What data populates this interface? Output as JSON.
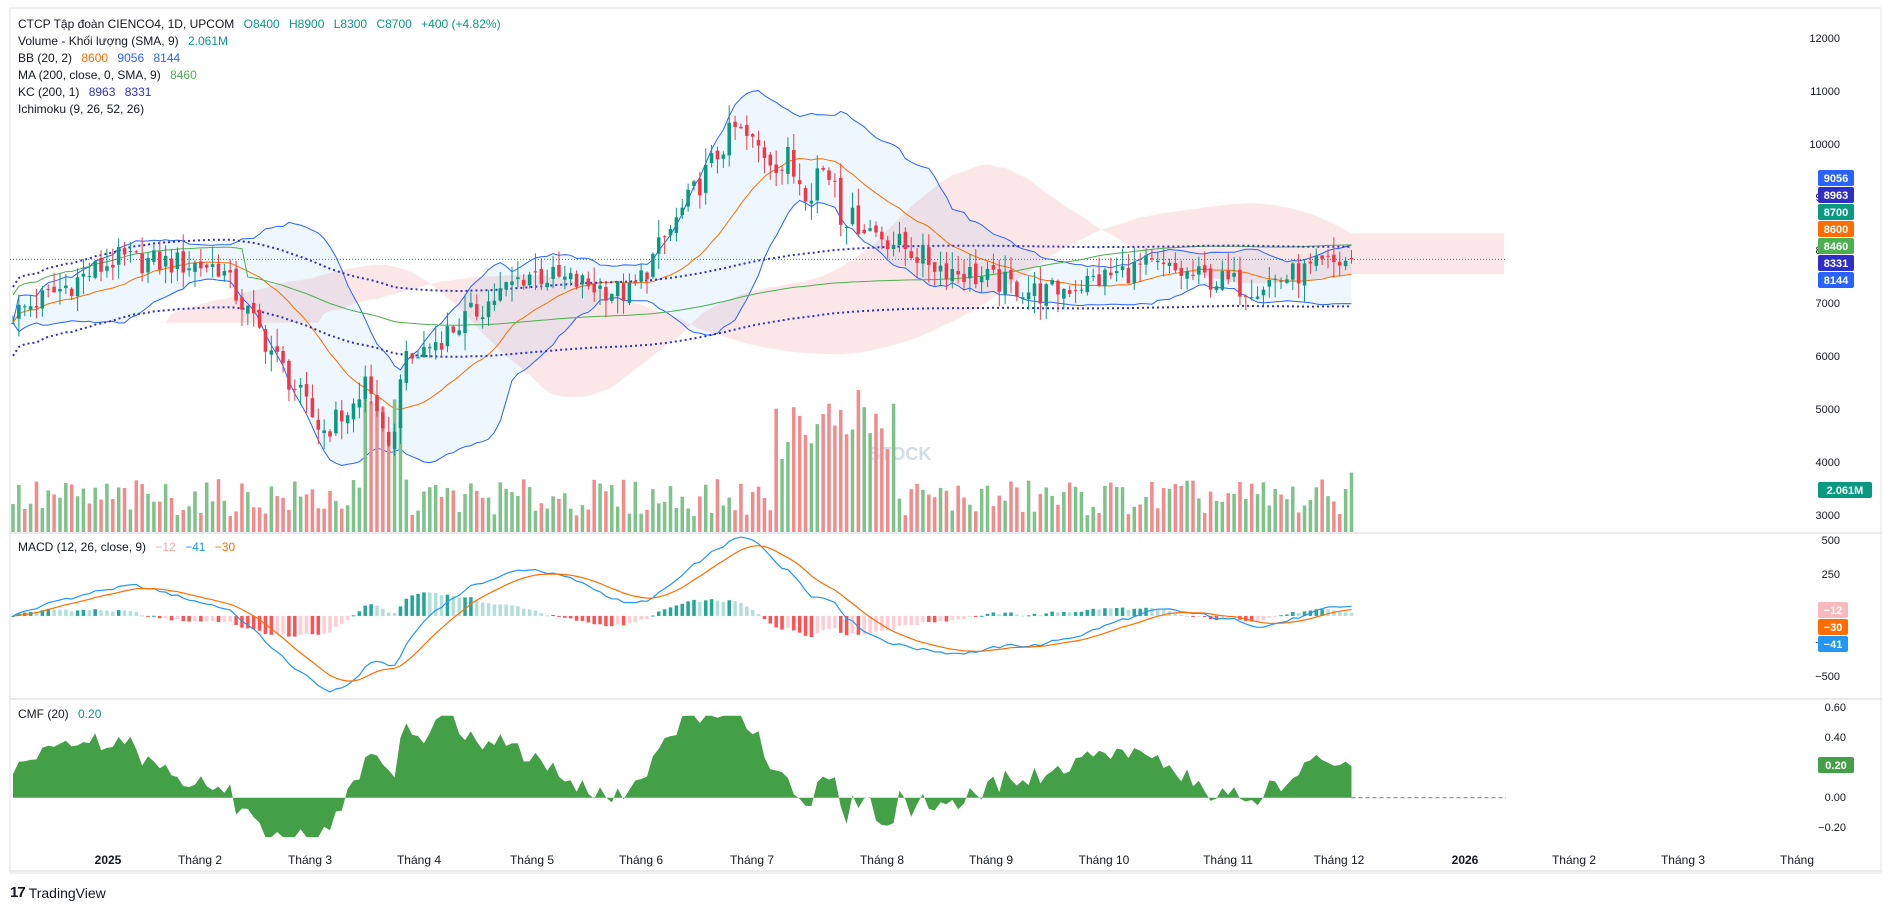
{
  "legend": {
    "main": {
      "title": "CTCP Tập đoàn CIENCO4, 1D, UPCOM",
      "o": "O8400",
      "h": "H8900",
      "l": "L8300",
      "c": "C8700",
      "chg": "+400 (+4.82%)"
    },
    "volume": {
      "label": "Volume - Khối lượng (SMA, 9)",
      "value": "2.061M"
    },
    "bb": {
      "label": "BB (20, 2)",
      "v1": "8600",
      "v2": "9056",
      "v3": "8144"
    },
    "ma": {
      "label": "MA (200, close, 0, SMA, 9)",
      "v1": "8460"
    },
    "kc": {
      "label": "KC (200, 1)",
      "v1": "8963",
      "v2": "8331"
    },
    "ichimoku": {
      "label": "Ichimoku (9, 26, 52, 26)"
    },
    "macd": {
      "label": "MACD (12, 26, close, 9)",
      "v1": "−12",
      "v2": "−41",
      "v3": "−30"
    },
    "cmf": {
      "label": "CMF (20)",
      "v1": "0.20"
    }
  },
  "colors": {
    "up": "#089981",
    "down": "#f23645",
    "bb": "#2962ff",
    "basis": "#ff6d00",
    "ma": "#4caf50",
    "kc": "#2f2fc7",
    "volUp": "#7ec48a",
    "volDown": "#f28b8b",
    "macd": "#2196f3",
    "signal": "#ff6d00",
    "cmf": "#43a047"
  },
  "watermark": "STOCK",
  "footer": {
    "logo": "TradingView"
  },
  "chart_data": [
    {
      "type": "candlestick",
      "title": "CTCP Tập đoàn CIENCO4, 1D, UPCOM",
      "ylim": [
        5500,
        12200
      ],
      "price_ticks": [
        "12000",
        "11000",
        "10000",
        "9000",
        "8000",
        "7000",
        "6000",
        "5000",
        "4000",
        "3000"
      ],
      "x_labels": [
        "2025",
        "Tháng 2",
        "Tháng 3",
        "Tháng 4",
        "Tháng 5",
        "Tháng 6",
        "Tháng 7",
        "Tháng 8",
        "Tháng 9",
        "Tháng 10",
        "Tháng 11",
        "Tháng 12",
        "2026",
        "Tháng 2",
        "Tháng 3",
        "Tháng"
      ],
      "monthly_close": [
        7900,
        8700,
        8600,
        6200,
        7400,
        8500,
        8200,
        10600,
        9400,
        8600,
        8200,
        8600,
        8300,
        8700
      ],
      "last": {
        "open": 8400,
        "high": 8900,
        "low": 8300,
        "close": 8700
      },
      "price_badges": [
        {
          "label": "9056",
          "color": "#2962ff"
        },
        {
          "label": "8963",
          "color": "#2f2fc7"
        },
        {
          "label": "8700",
          "color": "#089981"
        },
        {
          "label": "8600",
          "color": "#ff6d00"
        },
        {
          "label": "8460",
          "color": "#4caf50"
        },
        {
          "label": "8331",
          "color": "#2f2fc7"
        },
        {
          "label": "8144",
          "color": "#2962ff"
        }
      ],
      "volume_badge": "2.061M"
    },
    {
      "type": "line",
      "title": "MACD (12, 26, close, 9)",
      "ylim": [
        -620,
        560
      ],
      "ticks": [
        "500",
        "250",
        "0",
        "−250",
        "−500"
      ],
      "badges": [
        {
          "label": "−12",
          "color": "#f7b9bd"
        },
        {
          "label": "−30",
          "color": "#ff6d00"
        },
        {
          "label": "−41",
          "color": "#2196f3"
        }
      ]
    },
    {
      "type": "area",
      "title": "CMF (20)",
      "ylim": [
        -0.3,
        0.62
      ],
      "ticks": [
        "0.60",
        "0.40",
        "0.20",
        "0.00",
        "−0.20"
      ],
      "badge": "0.20"
    }
  ]
}
